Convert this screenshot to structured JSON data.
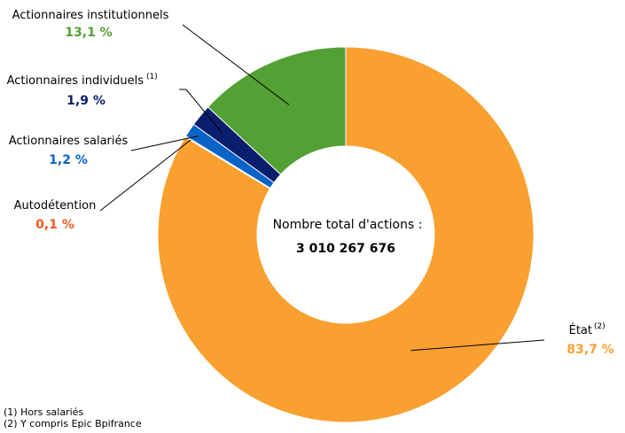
{
  "chart_data": {
    "type": "pie",
    "title": "",
    "center_label": "Nombre total d'actions :",
    "center_total": "3 010 267 676",
    "slices": [
      {
        "name": "État",
        "sup": "(2)",
        "value": 83.7,
        "value_label": "83,7 %",
        "color": "#F9A030"
      },
      {
        "name": "Autodétention",
        "sup": "",
        "value": 0.1,
        "value_label": "0,1 %",
        "color": "#F05A24"
      },
      {
        "name": "Actionnaires salariés",
        "sup": "",
        "value": 1.2,
        "value_label": "1,2 %",
        "color": "#0A64C8"
      },
      {
        "name": "Actionnaires individuels",
        "sup": "(1)",
        "value": 1.9,
        "value_label": "1,9 %",
        "color": "#0A1E6E"
      },
      {
        "name": "Actionnaires institutionnels",
        "sup": "",
        "value": 13.1,
        "value_label": "13,1 %",
        "color": "#53A035"
      }
    ]
  },
  "footnotes": [
    "(1) Hors salariés",
    "(2) Y compris Epic Bpifrance"
  ]
}
